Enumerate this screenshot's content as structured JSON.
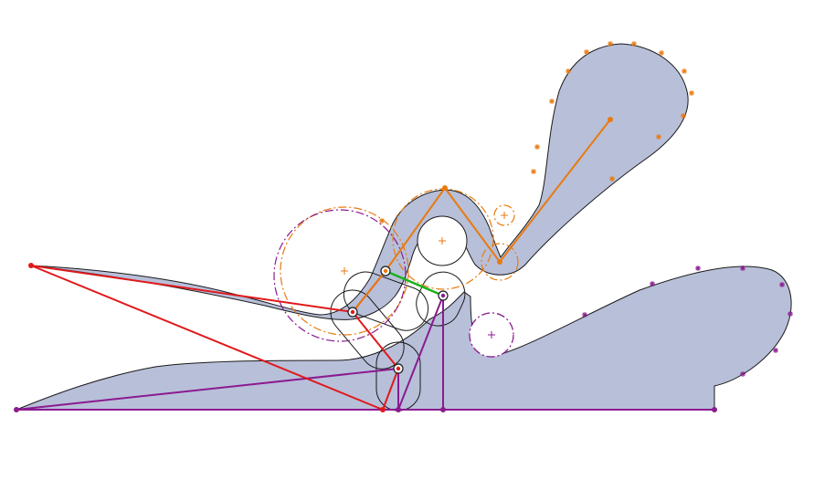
{
  "diagram": {
    "type": "mechanism-linkage-sketch",
    "colors": {
      "background": "#ffffff",
      "body_fill": "#b8bfd9",
      "body_stroke": "#1a1a1a",
      "red_links": "#e0191b",
      "orange_links": "#e87a0e",
      "purple_links": "#8a1b8f",
      "green_link": "#18b21a",
      "joint_ring": "#1a1a1a"
    },
    "components": [
      {
        "id": "lower-jaw",
        "color": "purple",
        "icon": "body-outline"
      },
      {
        "id": "upper-handle",
        "color": "orange",
        "icon": "body-outline"
      },
      {
        "id": "red-linkage",
        "color": "red",
        "icon": "polyline"
      },
      {
        "id": "coupler-link",
        "color": "green",
        "icon": "line"
      }
    ],
    "joints": [
      "joint-a",
      "joint-b",
      "joint-c",
      "joint-d"
    ]
  }
}
